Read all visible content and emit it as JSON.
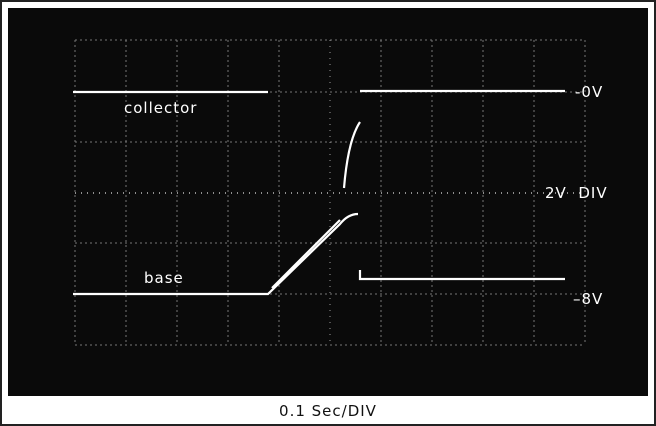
{
  "labels": {
    "collector": "collector",
    "base": "base",
    "zero": "-0V",
    "scale_v": "2V  DIV",
    "minus8": "–8V"
  },
  "caption": "0.1 Sec/DIV"
}
